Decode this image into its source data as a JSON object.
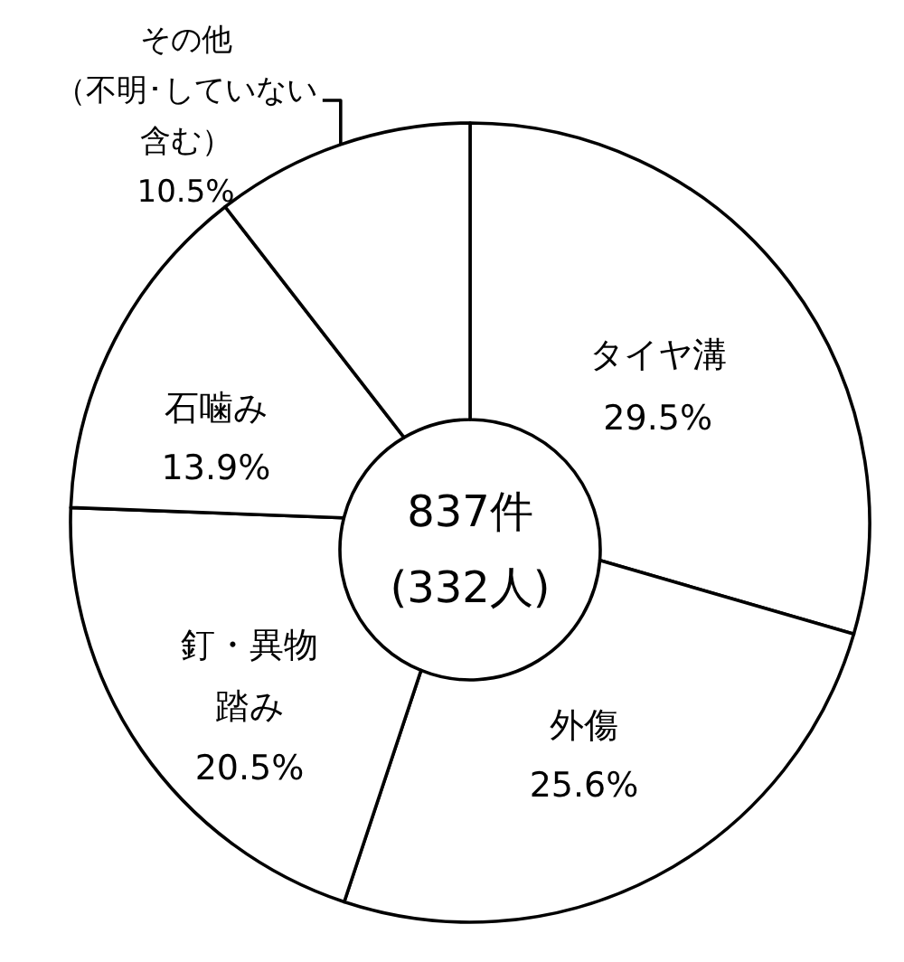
{
  "chart_data": {
    "type": "donut",
    "categories": [
      "タイヤ溝",
      "外傷",
      "釘・異物踏み",
      "石噛み",
      "その他（不明･していない含む）"
    ],
    "values": [
      29.5,
      25.6,
      20.5,
      13.9,
      10.5
    ],
    "colors": [
      "#ffffff",
      "#ffffff",
      "#ffffff",
      "#ffffff",
      "#ffffff"
    ],
    "value_labels": [
      "29.5%",
      "25.6%",
      "20.5%",
      "13.9%",
      "10.5%"
    ],
    "annotations": [
      "837件",
      "(332人)"
    ]
  }
}
